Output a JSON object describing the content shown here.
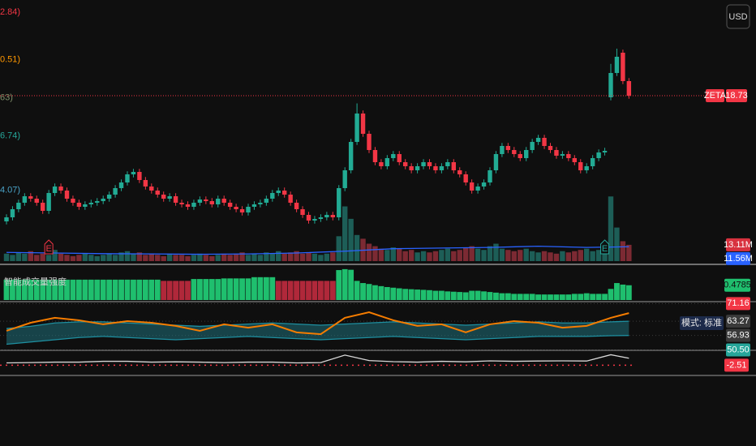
{
  "chart_data": [
    {
      "type": "candlestick",
      "symbol": "ZETA",
      "currency": "USD",
      "ylim": [
        10.65,
        23.45
      ],
      "up_color": "#22ab94",
      "down_color": "#f23645",
      "annotations": [
        {
          "value": 22.84,
          "label": "2.84)",
          "color": "#f23645"
        },
        {
          "value": 20.51,
          "label": "0.51)",
          "color": "#ff9800"
        },
        {
          "value": 18.63,
          "label": "63)",
          "color": "#7f8f6a"
        },
        {
          "value": 16.74,
          "label": "6.74)",
          "color": "#26a69a"
        },
        {
          "value": 14.07,
          "label": "4.07)",
          "color": "#4aa3c8"
        }
      ],
      "open": [
        12.53,
        12.73,
        13.13,
        13.45,
        13.77,
        13.65,
        13.45,
        13.05,
        13.93,
        14.25,
        14.05,
        13.65,
        13.45,
        13.25,
        13.37,
        13.45,
        13.53,
        13.65,
        13.85,
        14.17,
        14.45,
        14.85,
        14.97,
        14.57,
        14.25,
        14.05,
        13.85,
        13.65,
        13.77,
        13.45,
        13.37,
        13.25,
        13.45,
        13.61,
        13.53,
        13.37,
        13.65,
        13.45,
        13.25,
        13.13,
        12.97,
        13.25,
        13.37,
        13.45,
        13.65,
        13.93,
        14.05,
        13.85,
        13.45,
        13.13,
        12.85,
        12.57,
        12.65,
        12.73,
        12.85,
        12.73,
        14.17,
        15.05,
        16.45,
        17.85,
        16.85,
        16.05,
        15.45,
        15.25,
        15.65,
        15.85,
        15.45,
        15.25,
        15.05,
        15.25,
        15.45,
        15.25,
        15.05,
        15.25,
        15.45,
        15.05,
        14.85,
        14.45,
        14.05,
        14.25,
        14.45,
        15.05,
        15.85,
        16.25,
        16.05,
        15.85,
        15.65,
        16.05,
        16.45,
        16.65,
        16.25,
        16.05,
        15.77,
        15.85,
        15.65,
        15.45,
        15.05,
        15.25,
        15.65,
        15.93,
        18.65,
        19.85,
        20.85,
        19.45
      ],
      "high": [
        12.88,
        13.28,
        13.6,
        13.92,
        13.92,
        13.8,
        13.6,
        14.08,
        14.4,
        14.4,
        14.2,
        13.8,
        13.6,
        13.52,
        13.6,
        13.68,
        13.8,
        14,
        14.32,
        14.6,
        15,
        15.12,
        15.12,
        14.72,
        14.4,
        14.2,
        14,
        13.92,
        13.92,
        13.6,
        13.52,
        13.6,
        13.76,
        13.76,
        13.68,
        13.8,
        13.8,
        13.6,
        13.4,
        13.28,
        13.4,
        13.52,
        13.6,
        13.8,
        14.08,
        14.2,
        14.2,
        14,
        13.6,
        13.28,
        13,
        12.8,
        12.88,
        13,
        13,
        14.32,
        15.2,
        16.6,
        18.35,
        18,
        17,
        16.2,
        15.6,
        15.8,
        16,
        16,
        15.6,
        15.4,
        15.4,
        15.6,
        15.6,
        15.4,
        15.4,
        15.6,
        15.6,
        15.2,
        15,
        14.6,
        14.4,
        14.6,
        15.2,
        16,
        16.4,
        16.4,
        16.2,
        16,
        16.2,
        16.6,
        16.8,
        16.8,
        16.4,
        16.2,
        16,
        16,
        15.8,
        15.6,
        15.4,
        15.8,
        16.08,
        16.16,
        20.3,
        21.05,
        21,
        19.6
      ],
      "low": [
        12.38,
        12.58,
        12.98,
        13.3,
        13.5,
        13.3,
        12.9,
        12.9,
        13.78,
        13.9,
        13.5,
        13.3,
        13.1,
        13.1,
        13.22,
        13.3,
        13.38,
        13.5,
        13.7,
        14.02,
        14.3,
        14.7,
        14.42,
        14.1,
        13.9,
        13.7,
        13.5,
        13.5,
        13.3,
        13.22,
        13.1,
        13.1,
        13.3,
        13.38,
        13.22,
        13.22,
        13.3,
        13.1,
        12.98,
        12.82,
        12.82,
        13.1,
        13.22,
        13.3,
        13.5,
        13.78,
        13.7,
        13.3,
        12.98,
        12.7,
        12.42,
        12.42,
        12.5,
        12.58,
        12.58,
        12.58,
        14.02,
        14.9,
        16.3,
        16.7,
        15.9,
        15.3,
        15.1,
        15.1,
        15.5,
        15.3,
        15.1,
        14.9,
        14.9,
        15.1,
        15.1,
        14.9,
        14.9,
        15.1,
        14.9,
        14.7,
        14.3,
        13.9,
        13.9,
        14.1,
        14.3,
        14.9,
        15.7,
        15.9,
        15.7,
        15.5,
        15.5,
        15.9,
        16.3,
        16.1,
        15.9,
        15.62,
        15.62,
        15.5,
        15.3,
        14.9,
        14.9,
        15.1,
        15.5,
        15.78,
        18.5,
        19.7,
        19.3,
        18.58
      ],
      "close": [
        12.73,
        13.13,
        13.45,
        13.77,
        13.65,
        13.45,
        13.05,
        13.93,
        14.25,
        14.05,
        13.65,
        13.45,
        13.25,
        13.37,
        13.45,
        13.53,
        13.65,
        13.85,
        14.17,
        14.45,
        14.85,
        14.97,
        14.57,
        14.25,
        14.05,
        13.85,
        13.65,
        13.77,
        13.45,
        13.37,
        13.25,
        13.45,
        13.61,
        13.53,
        13.37,
        13.65,
        13.45,
        13.25,
        13.13,
        12.97,
        13.25,
        13.37,
        13.45,
        13.65,
        13.93,
        14.05,
        13.85,
        13.45,
        13.13,
        12.85,
        12.57,
        12.65,
        12.73,
        12.85,
        12.73,
        14.17,
        15.05,
        16.45,
        17.85,
        16.85,
        16.05,
        15.45,
        15.25,
        15.65,
        15.85,
        15.45,
        15.25,
        15.05,
        15.25,
        15.45,
        15.25,
        15.05,
        15.25,
        15.45,
        15.05,
        14.85,
        14.45,
        14.05,
        14.25,
        14.45,
        15.05,
        15.85,
        16.25,
        16.05,
        15.85,
        15.65,
        16.05,
        16.45,
        16.65,
        16.25,
        16.05,
        15.77,
        15.85,
        15.65,
        15.45,
        15.05,
        15.25,
        15.65,
        15.93,
        16.01,
        19.85,
        20.65,
        19.45,
        18.73
      ],
      "volume": {
        "ylim": [
          0,
          210
        ],
        "up_color": "#1d5e57",
        "down_color": "#7c2a33",
        "values": [
          6,
          5,
          7,
          6,
          8,
          5,
          6,
          5,
          9,
          6,
          5,
          4,
          5,
          6,
          5,
          4,
          5,
          6,
          5,
          7,
          8,
          6,
          7,
          5,
          6,
          5,
          4,
          6,
          5,
          5,
          4,
          5,
          6,
          5,
          4,
          5,
          6,
          5,
          6,
          7,
          5,
          6,
          5,
          7,
          6,
          8,
          6,
          7,
          8,
          6,
          7,
          6,
          5,
          6,
          7,
          20,
          44,
          34,
          21,
          18,
          14,
          12,
          10,
          9,
          11,
          10,
          8,
          9,
          7,
          8,
          7,
          8,
          9,
          10,
          8,
          9,
          11,
          12,
          10,
          9,
          12,
          14,
          10,
          9,
          8,
          9,
          10,
          8,
          7,
          8,
          7,
          6,
          8,
          7,
          8,
          9,
          10,
          8,
          9,
          8,
          52,
          27,
          16,
          13.11
        ],
        "last": {
          "value": 13.11,
          "label": "13.11M"
        },
        "ma": {
          "color": "#2962ff",
          "x": [
            0,
            8,
            16,
            24,
            32,
            40,
            48,
            56,
            64,
            72,
            80,
            88,
            96,
            103
          ],
          "values": [
            7,
            6.5,
            6,
            5.8,
            5.5,
            5.8,
            6.5,
            8,
            10,
            10.5,
            11,
            12,
            11,
            11.56
          ],
          "last": {
            "value": 11.56,
            "label": "11.56M"
          }
        }
      },
      "earnings": [
        {
          "x": 7,
          "label": "E"
        },
        {
          "x": 99,
          "label": "E"
        }
      ]
    },
    {
      "type": "bar",
      "title": "智能成交量强度",
      "ylim": [
        0,
        1.05
      ],
      "series": [
        {
          "color": "#1fbf6e",
          "values": [
            0.66,
            0.66,
            0.66,
            0.66,
            0.66,
            0.66,
            0.66,
            0.66,
            0.66,
            0.66,
            0.66,
            0.66,
            0.66,
            0.66,
            0.66,
            0.66,
            0.66,
            0.66,
            0.66,
            0.66,
            0.66,
            0.66,
            0.66,
            0.66,
            0.66,
            0.66,
            null,
            null,
            null,
            null,
            null,
            0.68,
            0.68,
            0.68,
            0.68,
            0.68,
            0.7,
            0.7,
            0.7,
            0.7,
            0.7,
            0.74,
            0.74,
            0.74,
            0.74,
            null,
            null,
            null,
            null,
            null,
            null,
            null,
            null,
            null,
            null,
            0.97,
            1.0,
            0.98,
            0.62,
            0.55,
            0.52,
            0.48,
            0.45,
            0.42,
            0.4,
            0.38,
            0.36,
            0.35,
            0.34,
            0.33,
            0.32,
            0.3,
            0.3,
            0.28,
            0.27,
            0.26,
            0.25,
            0.3,
            0.3,
            0.28,
            0.26,
            0.24,
            0.22,
            0.22,
            0.2,
            0.2,
            0.2,
            0.2,
            0.18,
            0.18,
            0.18,
            0.18,
            0.18,
            0.18,
            0.2,
            0.2,
            0.22,
            0.2,
            0.2,
            0.2,
            0.36,
            0.55,
            0.5,
            0.4785
          ]
        },
        {
          "color": "#b0283a",
          "values": [
            null,
            null,
            null,
            null,
            null,
            null,
            null,
            null,
            null,
            null,
            null,
            null,
            null,
            null,
            null,
            null,
            null,
            null,
            null,
            null,
            null,
            null,
            null,
            null,
            null,
            null,
            0.62,
            0.62,
            0.62,
            0.62,
            0.62,
            null,
            null,
            null,
            null,
            null,
            null,
            null,
            null,
            null,
            null,
            null,
            null,
            null,
            null,
            0.62,
            0.62,
            0.62,
            0.62,
            0.62,
            0.62,
            0.62,
            0.62,
            0.62,
            0.62,
            null,
            null,
            null,
            null,
            null,
            null,
            null,
            null,
            null,
            null,
            null,
            null,
            null,
            null,
            null,
            null,
            null,
            null,
            null,
            null,
            null,
            null,
            null,
            null,
            null,
            null,
            null,
            null,
            null,
            null,
            null,
            null,
            null,
            null,
            null,
            null,
            null,
            null,
            null,
            null,
            null,
            null,
            null,
            null,
            null,
            null,
            null,
            null,
            null
          ]
        }
      ]
    },
    {
      "type": "line",
      "label": "模式: 标准",
      "ylim": [
        50.3,
        72
      ],
      "yticks": [
        71.16,
        63.27,
        56.93,
        {
          "value": 50.5,
          "label": "50.50"
        }
      ],
      "ytick_colors": [
        "#f23645",
        "#3a3a3a",
        "#3a3a3a",
        "#26a69a"
      ],
      "fill_color": "#1f6f7a",
      "series": [
        {
          "color": "#1e8fa0",
          "x": [
            0,
            4,
            8,
            12,
            16,
            20,
            24,
            28,
            32,
            36,
            40,
            44,
            48,
            52,
            56,
            60,
            64,
            68,
            72,
            76,
            80,
            84,
            88,
            92,
            96,
            100,
            103
          ],
          "values": [
            60,
            61,
            62.5,
            63,
            63,
            62.5,
            62,
            61.5,
            61,
            61.5,
            62,
            62.5,
            62,
            61.5,
            62,
            62.5,
            63,
            62.5,
            62,
            61.5,
            62,
            62.5,
            63,
            62.5,
            62.5,
            63,
            63.27
          ]
        },
        {
          "color": "#1e8fa0",
          "x": [
            0,
            4,
            8,
            12,
            16,
            20,
            24,
            28,
            32,
            36,
            40,
            44,
            48,
            52,
            56,
            60,
            64,
            68,
            72,
            76,
            80,
            84,
            88,
            92,
            96,
            100,
            103
          ],
          "values": [
            53,
            54,
            55,
            56,
            56.5,
            56,
            55.5,
            55,
            55.5,
            56,
            56.5,
            56,
            55.5,
            55,
            55.5,
            56,
            56.5,
            56,
            55.5,
            55,
            55.5,
            56,
            56.5,
            56.5,
            56.5,
            56.8,
            56.93
          ]
        },
        {
          "color": "#f57c00",
          "x": [
            0,
            4,
            8,
            12,
            16,
            20,
            24,
            28,
            32,
            36,
            40,
            44,
            48,
            52,
            56,
            60,
            64,
            68,
            72,
            76,
            80,
            84,
            88,
            92,
            96,
            100,
            103
          ],
          "values": [
            59,
            62.6,
            64.8,
            63.7,
            61.9,
            63.3,
            62.6,
            61.2,
            59,
            61.9,
            60.4,
            61.9,
            58.3,
            57.5,
            64.8,
            67.3,
            63.7,
            61.2,
            61.9,
            58.3,
            61.9,
            63.3,
            62.6,
            60.4,
            61.2,
            64.8,
            66.9
          ]
        }
      ]
    },
    {
      "type": "line",
      "ylim": [
        -8.5,
        6
      ],
      "ref_line": -2.51,
      "ref_color": "#f23645",
      "series": [
        {
          "color": "#d8d8d8",
          "x": [
            0,
            4,
            8,
            12,
            16,
            20,
            24,
            28,
            32,
            36,
            40,
            44,
            48,
            52,
            56,
            60,
            64,
            68,
            72,
            76,
            80,
            84,
            88,
            92,
            96,
            100,
            103
          ],
          "values": [
            -1,
            -0.8,
            -0.5,
            -0.5,
            0,
            0,
            -0.5,
            -0.3,
            -0.5,
            -0.8,
            -0.5,
            -0.5,
            -1,
            -0.8,
            4,
            0.5,
            -0.2,
            -0.5,
            0,
            -0.3,
            0.3,
            0,
            0.2,
            0.3,
            0.2,
            4.2,
            2
          ]
        }
      ]
    }
  ]
}
